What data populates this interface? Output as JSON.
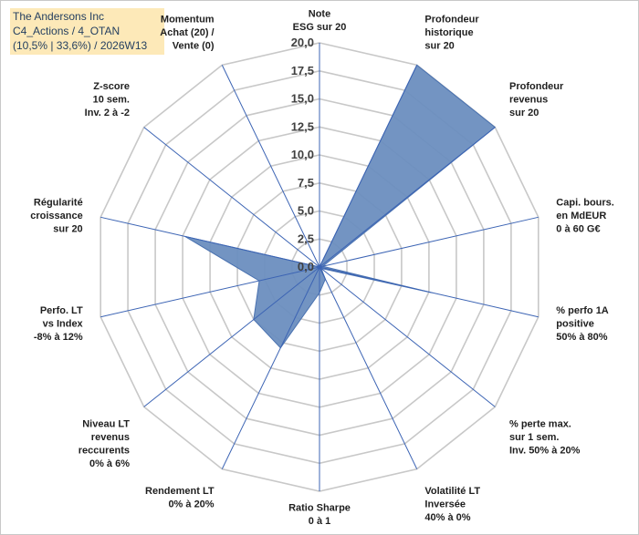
{
  "header": {
    "line1": "The Andersons Inc",
    "line2": "C4_Actions / 4_OTAN",
    "line3": "(10,5% | 33,6%) / 2026W13"
  },
  "colors": {
    "fill": "#6c8ebf",
    "stroke": "#4a72b0",
    "grid": "#c8c8c8",
    "spoke": "#3c64b4",
    "title_bg": "#fde9b8"
  },
  "chart_data": {
    "type": "radar",
    "title": "The Andersons Inc",
    "rmin": 0,
    "rmax": 20,
    "tick_labels": [
      "0,0",
      "2,5",
      "5,0",
      "7,5",
      "10,0",
      "12,5",
      "15,0",
      "17,5",
      "20,0"
    ],
    "axes": [
      {
        "lines": [
          "Note",
          "ESG sur 20"
        ],
        "value": 0.0
      },
      {
        "lines": [
          "Profondeur",
          "historique",
          "sur 20"
        ],
        "value": 20.0
      },
      {
        "lines": [
          "Profondeur",
          "revenus",
          "sur 20"
        ],
        "value": 20.0
      },
      {
        "lines": [
          "Capi. bours.",
          "en MdEUR",
          "0 à 60 G€"
        ],
        "value": 0.3
      },
      {
        "lines": [
          "% perfo 1A",
          "positive",
          "50% à 80%"
        ],
        "value": 10.3
      },
      {
        "lines": [
          "% perte max.",
          "sur 1 sem.",
          "Inv. 50% à 20%"
        ],
        "value": 0.2
      },
      {
        "lines": [
          "Volatilité LT",
          "Inversée",
          "40% à 0%"
        ],
        "value": 1.2
      },
      {
        "lines": [
          "Ratio Sharpe",
          "0 à 1"
        ],
        "value": 2.3
      },
      {
        "lines": [
          "Rendement LT",
          "0% à 20%"
        ],
        "value": 8.0
      },
      {
        "lines": [
          "Niveau LT",
          "revenus",
          "reccurents",
          "0% à 6%"
        ],
        "value": 7.5
      },
      {
        "lines": [
          "Perfo. LT",
          "vs Index",
          "-8% à 12%"
        ],
        "value": 5.5
      },
      {
        "lines": [
          "Régularité",
          "croissance",
          "sur 20"
        ],
        "value": 12.3
      },
      {
        "lines": [
          "Z-score",
          "10 sem.",
          "Inv. 2 à -2"
        ],
        "value": 0.0
      },
      {
        "lines": [
          "Momentum",
          "Achat (20) /",
          "Vente (0)"
        ],
        "value": 0.0
      }
    ]
  }
}
